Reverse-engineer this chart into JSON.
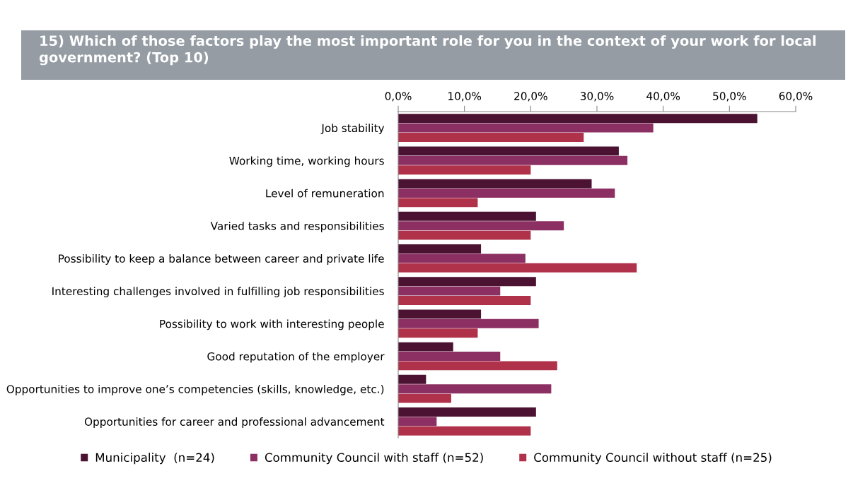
{
  "chart_data": {
    "type": "bar",
    "orientation": "horizontal",
    "title": "15) Which of those factors play the most important role for you in the context of your work for local government? (Top 10)",
    "categories": [
      "Job stability",
      "Working time, working hours",
      "Level of remuneration",
      "Varied tasks and responsibilities",
      "Possibility to keep a balance between career and private life",
      "Interesting challenges involved in fulfilling job responsibilities",
      "Possibility to work with interesting people",
      "Good reputation of the employer",
      "Opportunities to improve one’s competencies (skills, knowledge, etc.)",
      "Opportunities for career and professional advancement"
    ],
    "series": [
      {
        "name": "Municipality  (n=24)",
        "color": "#4b1232",
        "values": [
          54.2,
          33.3,
          29.2,
          20.8,
          12.5,
          20.8,
          12.5,
          8.3,
          4.2,
          20.8
        ]
      },
      {
        "name": "Community Council with staff (n=52)",
        "color": "#8c2f62",
        "values": [
          38.5,
          34.6,
          32.7,
          25.0,
          19.2,
          15.4,
          21.2,
          15.4,
          23.1,
          5.8
        ]
      },
      {
        "name": "Community Council without staff (n=25)",
        "color": "#b0314a",
        "values": [
          28.0,
          20.0,
          12.0,
          20.0,
          36.0,
          20.0,
          12.0,
          24.0,
          8.0,
          20.0
        ]
      }
    ],
    "xlim": [
      0,
      60
    ],
    "xticks": [
      {
        "value": 0,
        "label": "0,0%"
      },
      {
        "value": 10,
        "label": "10,0%"
      },
      {
        "value": 20,
        "label": "20,0%"
      },
      {
        "value": 30,
        "label": "30,0%"
      },
      {
        "value": 40,
        "label": "40,0%"
      },
      {
        "value": 50,
        "label": "50,0%"
      },
      {
        "value": 60,
        "label": "60,0%"
      }
    ],
    "grid": false,
    "legend": "bottom"
  }
}
